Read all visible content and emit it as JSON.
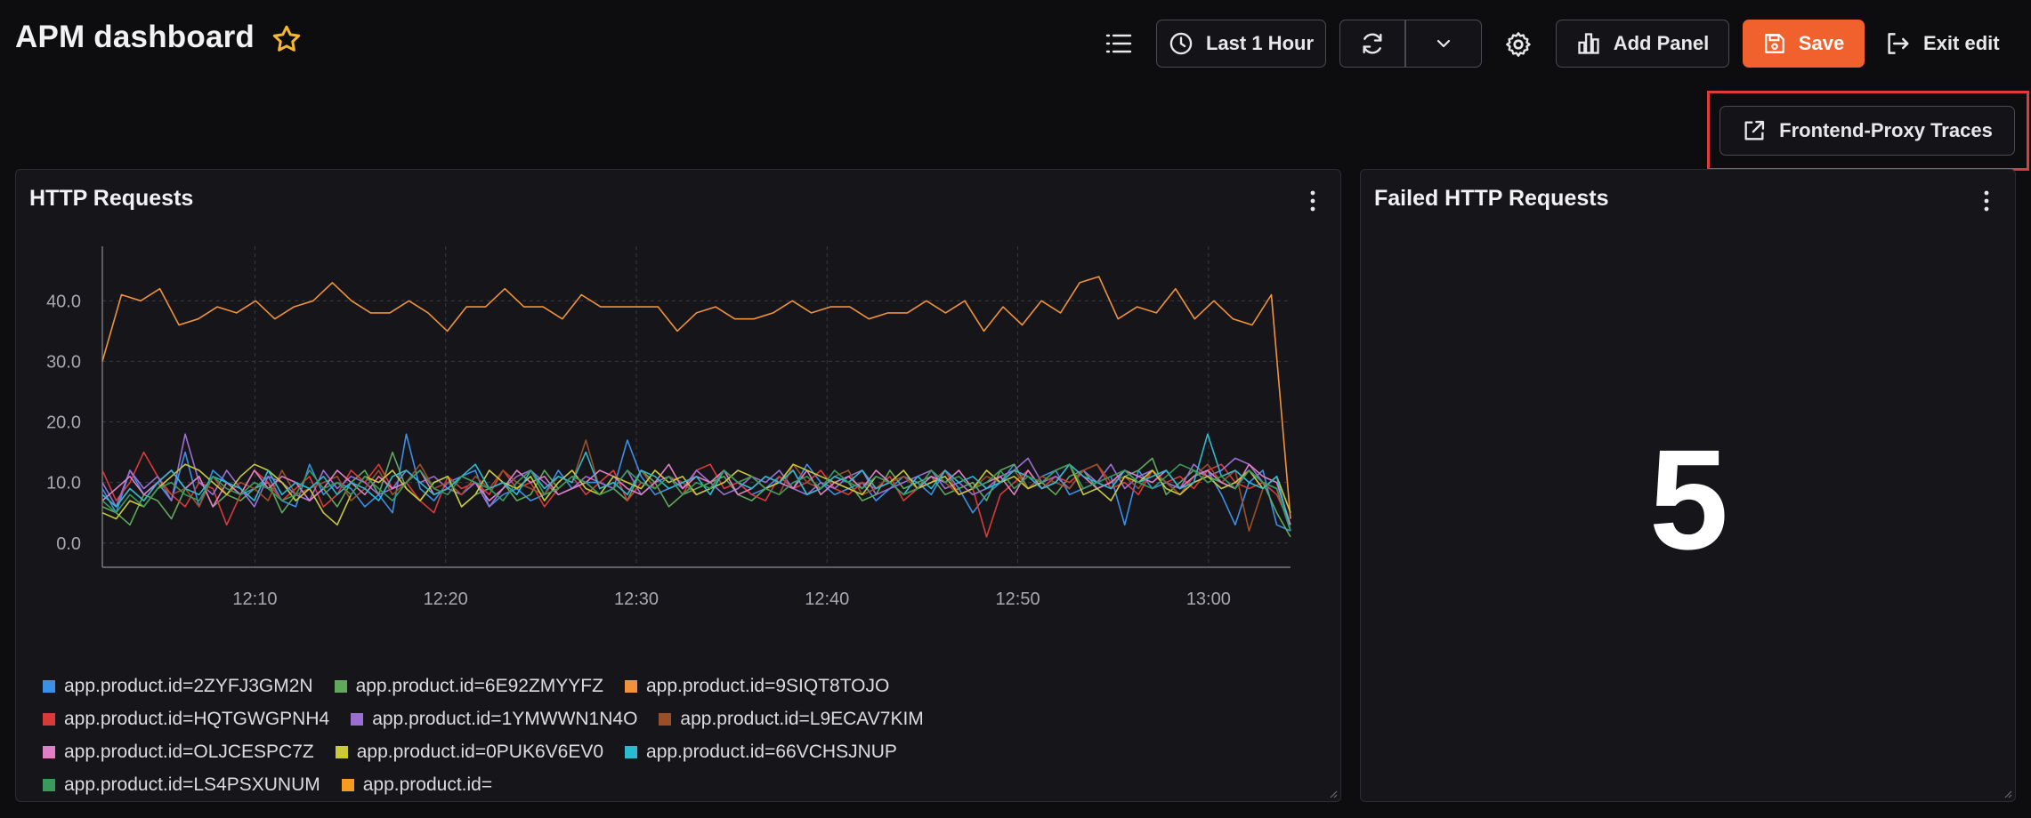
{
  "header": {
    "title": "APM dashboard",
    "time_range_label": "Last 1 Hour",
    "add_panel_label": "Add Panel",
    "save_label": "Save",
    "exit_label": "Exit edit",
    "link_label": "Frontend-Proxy Traces"
  },
  "colors": {
    "accent": "#f0612e",
    "highlight": "#e03b3b"
  },
  "panels": [
    {
      "title": "HTTP Requests"
    },
    {
      "title": "Failed HTTP Requests",
      "value": "5"
    }
  ],
  "chart_data": {
    "type": "line",
    "title": "HTTP Requests",
    "xlabel": "",
    "ylabel": "",
    "x_ticks": [
      "12:10",
      "12:20",
      "12:30",
      "12:40",
      "12:50",
      "13:00"
    ],
    "y_ticks": [
      "0.0",
      "10.0",
      "20.0",
      "30.0",
      "40.0"
    ],
    "ylim": [
      -4,
      49
    ],
    "x_range_minutes": [
      2,
      64.3
    ],
    "grid": true,
    "legend_position": "bottom-left",
    "series": [
      {
        "name": "app.product.id=2ZYFJ3GM2N",
        "color": "#3b8fe6",
        "values": [
          9,
          5,
          12,
          8,
          10,
          7,
          15,
          6,
          12,
          10,
          8,
          9,
          11,
          7,
          6,
          13,
          8,
          10,
          9,
          6,
          8,
          5,
          18,
          9,
          7,
          10,
          11,
          12,
          6,
          8,
          9,
          7,
          8,
          12,
          9,
          10,
          10,
          9,
          17,
          11,
          8,
          9,
          10,
          8,
          9,
          12,
          10,
          8,
          9,
          11,
          9,
          13,
          10,
          8,
          9,
          10,
          7,
          9,
          11,
          10,
          8,
          12,
          9,
          5,
          8,
          10,
          13,
          9,
          11,
          12,
          8,
          9,
          10,
          11,
          3,
          12,
          9,
          10,
          8,
          11,
          12,
          8,
          3,
          10,
          12,
          3,
          2
        ]
      },
      {
        "name": "app.product.id=6E92ZMYYFZ",
        "color": "#5fa85c",
        "values": [
          6,
          5,
          3,
          8,
          7,
          4,
          9,
          11,
          6,
          8,
          7,
          9,
          10,
          5,
          8,
          7,
          9,
          6,
          10,
          12,
          8,
          15,
          9,
          7,
          10,
          11,
          6,
          8,
          9,
          10,
          7,
          8,
          12,
          9,
          11,
          10,
          8,
          9,
          7,
          12,
          10,
          6,
          8,
          9,
          10,
          11,
          8,
          7,
          9,
          10,
          12,
          8,
          9,
          11,
          10,
          7,
          8,
          12,
          9,
          10,
          11,
          8,
          9,
          10,
          7,
          12,
          13,
          9,
          10,
          8,
          11,
          12,
          9,
          10,
          11,
          12,
          14,
          8,
          10,
          12,
          11,
          10,
          9,
          12,
          10,
          5,
          1
        ]
      },
      {
        "name": "app.product.id=9SIQT8TOJO",
        "color": "#f0923a",
        "values": [
          30,
          41,
          40,
          42,
          36,
          37,
          39,
          38,
          40,
          37,
          39,
          40,
          43,
          40,
          38,
          38,
          40,
          38,
          35,
          39,
          39,
          42,
          39,
          39,
          37,
          41,
          39,
          39,
          39,
          39,
          35,
          38,
          39,
          37,
          37,
          38,
          40,
          38,
          39,
          39,
          37,
          38,
          38,
          40,
          38,
          40,
          35,
          39,
          36,
          40,
          38,
          43,
          44,
          37,
          39,
          38,
          42,
          37,
          40,
          37,
          36,
          41,
          4
        ]
      },
      {
        "name": "app.product.id=HQTGWGPNH4",
        "color": "#d83a3a",
        "values": [
          12,
          7,
          10,
          15,
          11,
          8,
          6,
          10,
          9,
          3,
          8,
          12,
          10,
          7,
          9,
          11,
          6,
          8,
          12,
          10,
          13,
          9,
          10,
          7,
          5,
          11,
          9,
          10,
          8,
          12,
          9,
          10,
          6,
          9,
          11,
          8,
          10,
          12,
          7,
          10,
          9,
          11,
          8,
          12,
          13,
          9,
          10,
          8,
          7,
          11,
          9,
          10,
          12,
          9,
          8,
          10,
          9,
          11,
          7,
          9,
          10,
          12,
          8,
          9,
          1,
          8,
          10,
          12,
          9,
          11,
          10,
          12,
          13,
          9,
          10,
          8,
          12,
          10,
          11,
          9,
          12,
          13,
          10,
          9,
          10,
          8,
          3
        ]
      },
      {
        "name": "app.product.id=1YMWWN1N4O",
        "color": "#9b6fd1",
        "values": [
          10,
          6,
          12,
          9,
          11,
          7,
          18,
          10,
          8,
          12,
          9,
          6,
          11,
          10,
          8,
          7,
          12,
          9,
          11,
          10,
          8,
          9,
          12,
          10,
          11,
          9,
          8,
          10,
          6,
          9,
          11,
          12,
          10,
          8,
          9,
          11,
          10,
          9,
          12,
          8,
          10,
          11,
          9,
          12,
          10,
          8,
          9,
          11,
          10,
          12,
          9,
          8,
          10,
          9,
          11,
          12,
          8,
          9,
          10,
          11,
          12,
          9,
          10,
          8,
          9,
          11,
          12,
          14,
          10,
          11,
          9,
          12,
          10,
          13,
          9,
          11,
          12,
          10,
          9,
          13,
          11,
          12,
          14,
          13,
          10,
          9,
          2
        ]
      },
      {
        "name": "app.product.id=L9ECAV7KIM",
        "color": "#9a4f27",
        "values": [
          8,
          6,
          9,
          7,
          10,
          8,
          9,
          6,
          11,
          8,
          10,
          9,
          7,
          12,
          8,
          9,
          10,
          11,
          7,
          9,
          12,
          8,
          10,
          13,
          9,
          10,
          8,
          11,
          9,
          12,
          10,
          9,
          8,
          11,
          10,
          17,
          9,
          10,
          8,
          12,
          9,
          11,
          10,
          8,
          9,
          12,
          10,
          11,
          9,
          8,
          13,
          10,
          9,
          11,
          12,
          8,
          9,
          10,
          11,
          9,
          12,
          10,
          8,
          9,
          11,
          10,
          12,
          9,
          11,
          10,
          9,
          12,
          13,
          10,
          11,
          9,
          12,
          10,
          8,
          11,
          13,
          10,
          12,
          2,
          9,
          11,
          2
        ]
      },
      {
        "name": "app.product.id=OLJCESPC7Z",
        "color": "#e07fc4",
        "values": [
          7,
          9,
          11,
          8,
          10,
          12,
          9,
          11,
          6,
          10,
          8,
          12,
          9,
          11,
          10,
          7,
          9,
          12,
          10,
          8,
          11,
          9,
          10,
          12,
          8,
          9,
          11,
          10,
          7,
          9,
          12,
          10,
          11,
          8,
          9,
          10,
          12,
          11,
          9,
          8,
          10,
          13,
          9,
          11,
          10,
          12,
          8,
          9,
          11,
          10,
          9,
          12,
          8,
          10,
          11,
          9,
          12,
          10,
          8,
          9,
          11,
          10,
          12,
          9,
          10,
          11,
          8,
          12,
          9,
          10,
          13,
          11,
          9,
          10,
          12,
          11,
          10,
          12,
          9,
          11,
          12,
          10,
          9,
          13,
          11,
          10,
          3
        ]
      },
      {
        "name": "app.product.id=0PUK6V6EV0",
        "color": "#c9c93a",
        "values": [
          5,
          4,
          7,
          6,
          9,
          11,
          13,
          12,
          10,
          8,
          11,
          13,
          12,
          10,
          7,
          9,
          5,
          3,
          8,
          11,
          10,
          12,
          9,
          7,
          10,
          11,
          6,
          8,
          12,
          10,
          9,
          11,
          7,
          10,
          12,
          9,
          8,
          11,
          10,
          9,
          12,
          10,
          11,
          8,
          9,
          10,
          12,
          11,
          9,
          10,
          13,
          12,
          11,
          10,
          9,
          8,
          11,
          10,
          12,
          9,
          10,
          11,
          8,
          9,
          12,
          10,
          11,
          9,
          10,
          12,
          13,
          8,
          9,
          7,
          11,
          10,
          12,
          9,
          8,
          10,
          11,
          9,
          10,
          12,
          9,
          11,
          5
        ]
      },
      {
        "name": "app.product.id=66VCHSJNUP",
        "color": "#2bbad0",
        "values": [
          8,
          6,
          9,
          7,
          10,
          12,
          9,
          8,
          11,
          10,
          9,
          7,
          12,
          8,
          10,
          9,
          11,
          8,
          10,
          9,
          7,
          11,
          12,
          10,
          8,
          9,
          11,
          13,
          9,
          10,
          8,
          12,
          9,
          11,
          10,
          15,
          9,
          10,
          8,
          12,
          11,
          9,
          10,
          11,
          8,
          12,
          10,
          9,
          11,
          10,
          12,
          8,
          9,
          11,
          10,
          12,
          9,
          10,
          8,
          11,
          9,
          12,
          10,
          11,
          9,
          10,
          12,
          11,
          9,
          10,
          13,
          11,
          10,
          9,
          12,
          10,
          11,
          12,
          9,
          10,
          18,
          11,
          12,
          10,
          9,
          11,
          2
        ]
      },
      {
        "name": "app.product.id=LS4PSXUNUM",
        "color": "#3a9a5b",
        "values": [
          7,
          5,
          8,
          6,
          9,
          10,
          8,
          7,
          11,
          9,
          8,
          10,
          9,
          7,
          8,
          12,
          9,
          10,
          8,
          11,
          9,
          7,
          10,
          12,
          9,
          8,
          11,
          10,
          9,
          7,
          10,
          12,
          8,
          9,
          11,
          10,
          8,
          9,
          12,
          10,
          9,
          11,
          8,
          10,
          9,
          12,
          10,
          11,
          9,
          8,
          10,
          11,
          9,
          12,
          10,
          9,
          11,
          10,
          8,
          9,
          12,
          10,
          11,
          9,
          10,
          12,
          9,
          11,
          10,
          12,
          13,
          9,
          10,
          11,
          12,
          10,
          9,
          11,
          13,
          12,
          10,
          11,
          9,
          12,
          10,
          9,
          2
        ]
      },
      {
        "name": "app.product.id=",
        "color": "#f59b20",
        "values": []
      }
    ]
  }
}
